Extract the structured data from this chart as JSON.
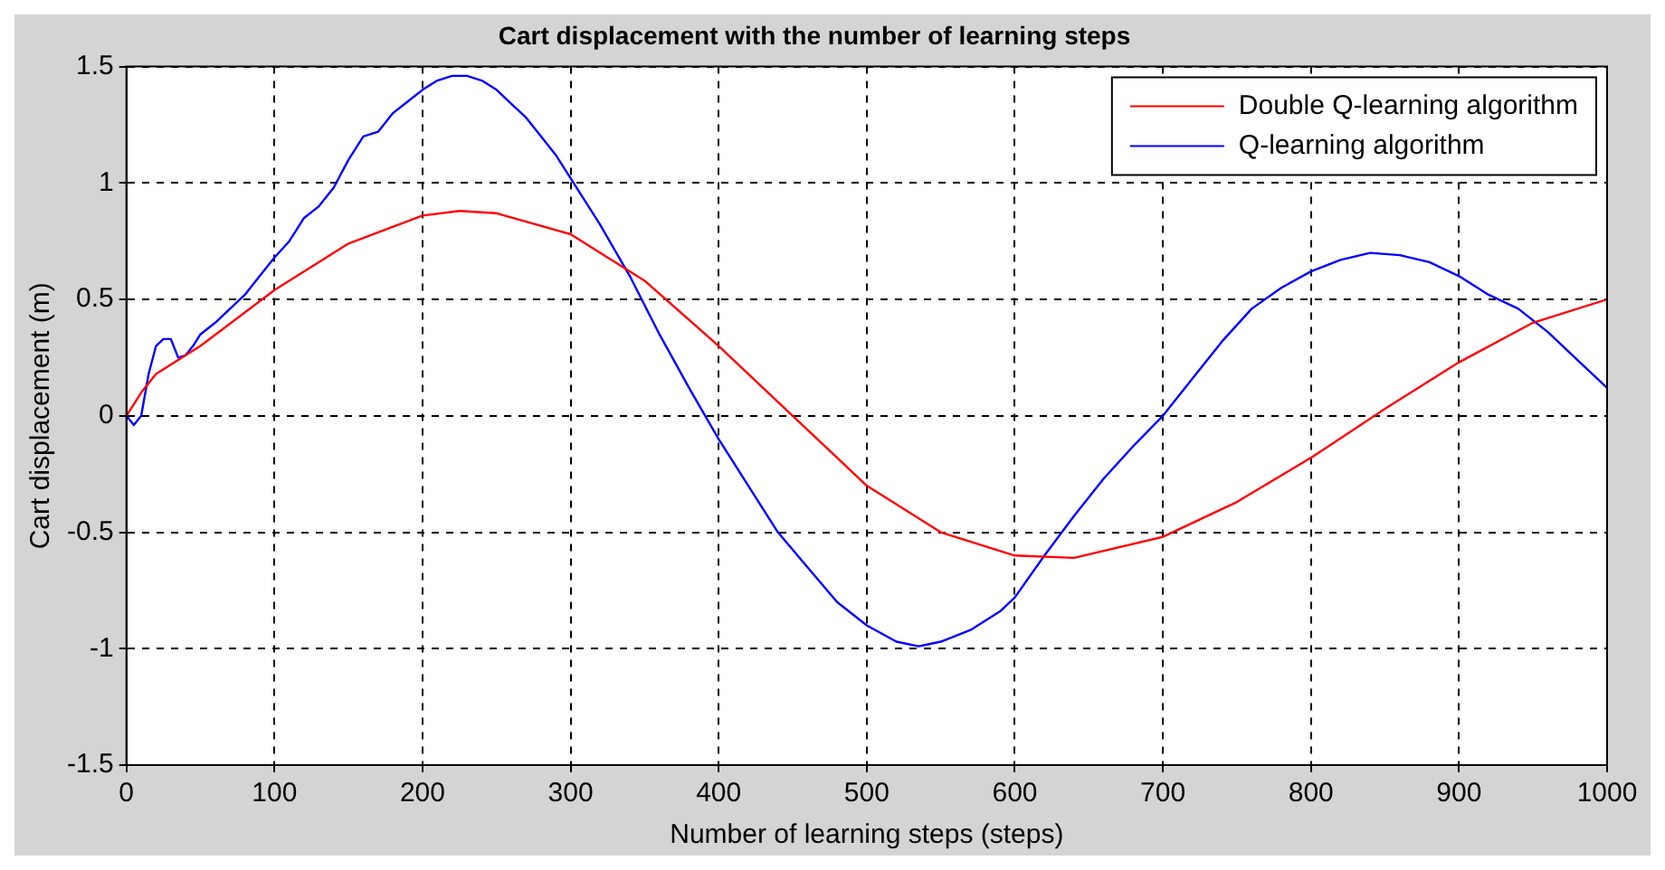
{
  "chart_data": {
    "type": "line",
    "title": "Cart displacement with the number of learning steps",
    "xlabel": "Number of learning steps (steps)",
    "ylabel": "Cart displacement (m)",
    "xlim": [
      0,
      1000
    ],
    "xticks": [
      0,
      100,
      200,
      300,
      400,
      500,
      600,
      700,
      800,
      900,
      1000
    ],
    "ylim": [
      -1.5,
      1.5
    ],
    "yticks": [
      -1.5,
      -1,
      -0.5,
      0,
      0.5,
      1,
      1.5
    ],
    "grid": true,
    "legend": "top right",
    "line_style": "solid",
    "marker": "none",
    "series": [
      {
        "name": "Double Q-learning algorithm",
        "color": "#ff0000",
        "x": [
          0,
          10,
          20,
          50,
          100,
          150,
          200,
          225,
          250,
          300,
          350,
          400,
          450,
          500,
          550,
          600,
          640,
          700,
          750,
          800,
          850,
          900,
          950,
          1000
        ],
        "values": [
          0,
          0.1,
          0.18,
          0.3,
          0.54,
          0.74,
          0.86,
          0.88,
          0.87,
          0.78,
          0.58,
          0.3,
          0,
          -0.3,
          -0.5,
          -0.6,
          -0.61,
          -0.52,
          -0.37,
          -0.18,
          0.03,
          0.23,
          0.4,
          0.5
        ]
      },
      {
        "name": "Q-learning algorithm",
        "color": "#0000ff",
        "x": [
          0,
          5,
          10,
          15,
          20,
          25,
          30,
          35,
          40,
          45,
          50,
          60,
          70,
          80,
          90,
          100,
          110,
          120,
          130,
          140,
          150,
          160,
          170,
          180,
          190,
          200,
          210,
          220,
          230,
          240,
          250,
          260,
          270,
          280,
          290,
          300,
          320,
          340,
          360,
          380,
          400,
          420,
          440,
          460,
          480,
          500,
          520,
          535,
          550,
          570,
          590,
          600,
          620,
          640,
          660,
          680,
          700,
          720,
          740,
          760,
          780,
          800,
          820,
          840,
          860,
          880,
          900,
          920,
          940,
          960,
          980,
          1000
        ],
        "values": [
          0,
          -0.04,
          0,
          0.18,
          0.3,
          0.33,
          0.33,
          0.25,
          0.26,
          0.3,
          0.35,
          0.4,
          0.46,
          0.52,
          0.6,
          0.68,
          0.75,
          0.85,
          0.9,
          0.98,
          1.1,
          1.2,
          1.22,
          1.3,
          1.35,
          1.4,
          1.44,
          1.46,
          1.46,
          1.44,
          1.4,
          1.34,
          1.28,
          1.2,
          1.12,
          1.02,
          0.82,
          0.6,
          0.35,
          0.12,
          -0.1,
          -0.3,
          -0.5,
          -0.65,
          -0.8,
          -0.9,
          -0.97,
          -0.99,
          -0.97,
          -0.92,
          -0.84,
          -0.78,
          -0.6,
          -0.43,
          -0.27,
          -0.13,
          0,
          0.16,
          0.32,
          0.46,
          0.55,
          0.62,
          0.67,
          0.7,
          0.69,
          0.66,
          0.6,
          0.52,
          0.46,
          0.36,
          0.24,
          0.12
        ]
      }
    ]
  }
}
